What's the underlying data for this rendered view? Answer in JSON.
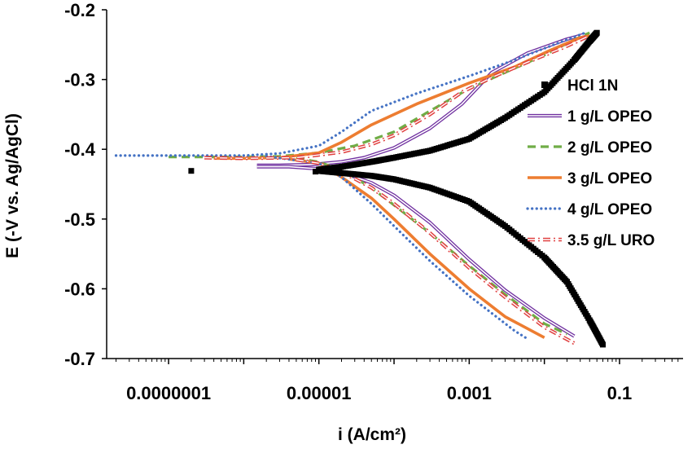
{
  "chart_data": {
    "type": "line",
    "xlabel": "i (A/cm²)",
    "ylabel": "E (-V vs. Ag/AgCl)",
    "x_scale": "log",
    "xlim": [
      1.5e-08,
      0.7
    ],
    "ylim": [
      -0.7,
      -0.2
    ],
    "x_ticks": [
      1e-07,
      1e-05,
      0.001,
      0.1
    ],
    "x_tick_labels": [
      "0.0000001",
      "0.00001",
      "0.001",
      "0.1"
    ],
    "y_ticks": [
      -0.2,
      -0.3,
      -0.4,
      -0.5,
      -0.6,
      -0.7
    ],
    "y_tick_labels": [
      "-0.2",
      "-0.3",
      "-0.4",
      "-0.5",
      "-0.6",
      "-0.7"
    ],
    "grid": false,
    "legend_position": "right",
    "series": [
      {
        "name": "HCl 1N",
        "color": "#000000",
        "style": "square-markers",
        "anodic": [
          [
            1e-05,
            -0.429
          ],
          [
            2e-05,
            -0.425
          ],
          [
            5e-05,
            -0.418
          ],
          [
            0.0001,
            -0.412
          ],
          [
            0.0003,
            -0.402
          ],
          [
            0.001,
            -0.385
          ],
          [
            0.003,
            -0.355
          ],
          [
            0.01,
            -0.318
          ],
          [
            0.025,
            -0.272
          ],
          [
            0.04,
            -0.245
          ],
          [
            0.05,
            -0.233
          ]
        ],
        "cathodic": [
          [
            1e-05,
            -0.431
          ],
          [
            2e-05,
            -0.434
          ],
          [
            5e-05,
            -0.438
          ],
          [
            0.0001,
            -0.443
          ],
          [
            0.0003,
            -0.455
          ],
          [
            0.001,
            -0.475
          ],
          [
            0.003,
            -0.51
          ],
          [
            0.01,
            -0.555
          ],
          [
            0.02,
            -0.59
          ],
          [
            0.04,
            -0.645
          ],
          [
            0.06,
            -0.68
          ]
        ],
        "scatter": [
          [
            2e-07,
            -0.431
          ],
          [
            9e-06,
            -0.432
          ],
          [
            1.75e-05,
            -0.432
          ]
        ]
      },
      {
        "name": "1 g/L OPEO",
        "color": "#7030A0",
        "style": "double-line",
        "anodic": [
          [
            1.5e-06,
            -0.423
          ],
          [
            3e-06,
            -0.423
          ],
          [
            8e-06,
            -0.422
          ],
          [
            2e-05,
            -0.418
          ],
          [
            4e-05,
            -0.412
          ],
          [
            0.0001,
            -0.398
          ],
          [
            0.0003,
            -0.37
          ],
          [
            0.0008,
            -0.335
          ],
          [
            0.002,
            -0.29
          ],
          [
            0.006,
            -0.262
          ],
          [
            0.02,
            -0.242
          ],
          [
            0.035,
            -0.235
          ]
        ],
        "cathodic": [
          [
            1.5e-06,
            -0.425
          ],
          [
            4e-06,
            -0.425
          ],
          [
            1e-05,
            -0.428
          ],
          [
            2e-05,
            -0.433
          ],
          [
            5e-05,
            -0.448
          ],
          [
            0.0001,
            -0.466
          ],
          [
            0.0003,
            -0.505
          ],
          [
            0.001,
            -0.558
          ],
          [
            0.003,
            -0.602
          ],
          [
            0.01,
            -0.642
          ],
          [
            0.025,
            -0.668
          ]
        ]
      },
      {
        "name": "2 g/L OPEO",
        "color": "#70AD47",
        "style": "dashed",
        "anodic": [
          [
            1e-07,
            -0.411
          ],
          [
            1e-06,
            -0.411
          ],
          [
            3e-06,
            -0.41
          ],
          [
            1e-05,
            -0.405
          ],
          [
            3e-05,
            -0.395
          ],
          [
            0.0001,
            -0.375
          ],
          [
            0.0003,
            -0.345
          ],
          [
            0.001,
            -0.313
          ],
          [
            0.003,
            -0.29
          ],
          [
            0.01,
            -0.265
          ],
          [
            0.025,
            -0.243
          ],
          [
            0.04,
            -0.233
          ]
        ],
        "cathodic": [
          [
            5e-06,
            -0.413
          ],
          [
            1e-05,
            -0.418
          ],
          [
            2e-05,
            -0.43
          ],
          [
            5e-05,
            -0.455
          ],
          [
            0.0001,
            -0.48
          ],
          [
            0.0003,
            -0.52
          ],
          [
            0.001,
            -0.567
          ],
          [
            0.003,
            -0.608
          ],
          [
            0.01,
            -0.65
          ],
          [
            0.02,
            -0.665
          ]
        ]
      },
      {
        "name": "3 g/L OPEO",
        "color": "#ED7D31",
        "style": "solid-thick",
        "anodic": [
          [
            4e-07,
            -0.413
          ],
          [
            1e-06,
            -0.413
          ],
          [
            3e-06,
            -0.412
          ],
          [
            1e-05,
            -0.405
          ],
          [
            2e-05,
            -0.39
          ],
          [
            5e-05,
            -0.365
          ],
          [
            0.0002,
            -0.335
          ],
          [
            0.001,
            -0.305
          ],
          [
            0.004,
            -0.282
          ],
          [
            0.012,
            -0.258
          ],
          [
            0.03,
            -0.24
          ],
          [
            0.04,
            -0.237
          ]
        ],
        "cathodic": [
          [
            4e-06,
            -0.414
          ],
          [
            1e-05,
            -0.42
          ],
          [
            2e-05,
            -0.44
          ],
          [
            5e-05,
            -0.47
          ],
          [
            0.0001,
            -0.5
          ],
          [
            0.0003,
            -0.55
          ],
          [
            0.001,
            -0.6
          ],
          [
            0.003,
            -0.64
          ],
          [
            0.01,
            -0.67
          ]
        ]
      },
      {
        "name": "4 g/L OPEO",
        "color": "#4472C4",
        "style": "dotted",
        "anodic": [
          [
            2e-08,
            -0.409
          ],
          [
            1e-07,
            -0.409
          ],
          [
            1e-06,
            -0.409
          ],
          [
            3e-06,
            -0.406
          ],
          [
            1e-05,
            -0.395
          ],
          [
            2e-05,
            -0.375
          ],
          [
            5e-05,
            -0.345
          ],
          [
            0.0002,
            -0.32
          ],
          [
            0.001,
            -0.295
          ],
          [
            0.004,
            -0.272
          ],
          [
            0.015,
            -0.248
          ],
          [
            0.035,
            -0.233
          ]
        ],
        "cathodic": [
          [
            2e-06,
            -0.41
          ],
          [
            1e-05,
            -0.42
          ],
          [
            2e-05,
            -0.44
          ],
          [
            5e-05,
            -0.478
          ],
          [
            0.0001,
            -0.51
          ],
          [
            0.0003,
            -0.56
          ],
          [
            0.001,
            -0.61
          ],
          [
            0.002,
            -0.635
          ],
          [
            0.004,
            -0.66
          ],
          [
            0.006,
            -0.672
          ]
        ]
      },
      {
        "name": "3.5 g/L URO",
        "color": "#E04040",
        "style": "dash-dot-double",
        "anodic": [
          [
            3e-07,
            -0.412
          ],
          [
            1e-06,
            -0.413
          ],
          [
            5e-06,
            -0.412
          ],
          [
            2e-05,
            -0.404
          ],
          [
            5e-05,
            -0.393
          ],
          [
            0.0001,
            -0.38
          ],
          [
            0.0003,
            -0.35
          ],
          [
            0.0008,
            -0.318
          ],
          [
            0.002,
            -0.297
          ],
          [
            0.006,
            -0.275
          ],
          [
            0.02,
            -0.252
          ],
          [
            0.04,
            -0.237
          ]
        ],
        "cathodic": [
          [
            5e-06,
            -0.415
          ],
          [
            1e-05,
            -0.42
          ],
          [
            2e-05,
            -0.432
          ],
          [
            5e-05,
            -0.455
          ],
          [
            0.0001,
            -0.478
          ],
          [
            0.0003,
            -0.52
          ],
          [
            0.001,
            -0.57
          ],
          [
            0.003,
            -0.612
          ],
          [
            0.01,
            -0.655
          ],
          [
            0.025,
            -0.678
          ]
        ]
      }
    ]
  }
}
